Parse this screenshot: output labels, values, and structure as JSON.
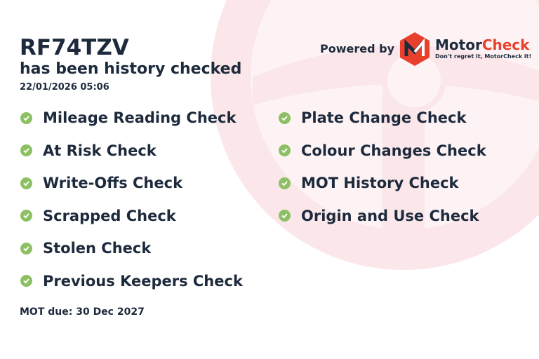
{
  "vehicle": {
    "plate": "RF74TZV",
    "subtitle": "has been history checked",
    "timestamp": "22/01/2026 05:06"
  },
  "branding": {
    "powered_by": "Powered by",
    "brand_part1": "Motor",
    "brand_part2": "Check",
    "tagline": "Don't regret it, MotorCheck it!",
    "brand_color": "#e8402c"
  },
  "checks_left": [
    "Mileage Reading Check",
    "At Risk Check",
    "Write-Offs Check",
    "Scrapped Check",
    "Stolen Check",
    "Previous Keepers Check"
  ],
  "checks_right": [
    "Plate Change Check",
    "Colour Changes Check",
    "MOT History Check",
    "Origin and Use Check"
  ],
  "check_icon": "check-circle-icon",
  "check_color": "#8cc063",
  "mot_due": "MOT due: 30 Dec 2027"
}
